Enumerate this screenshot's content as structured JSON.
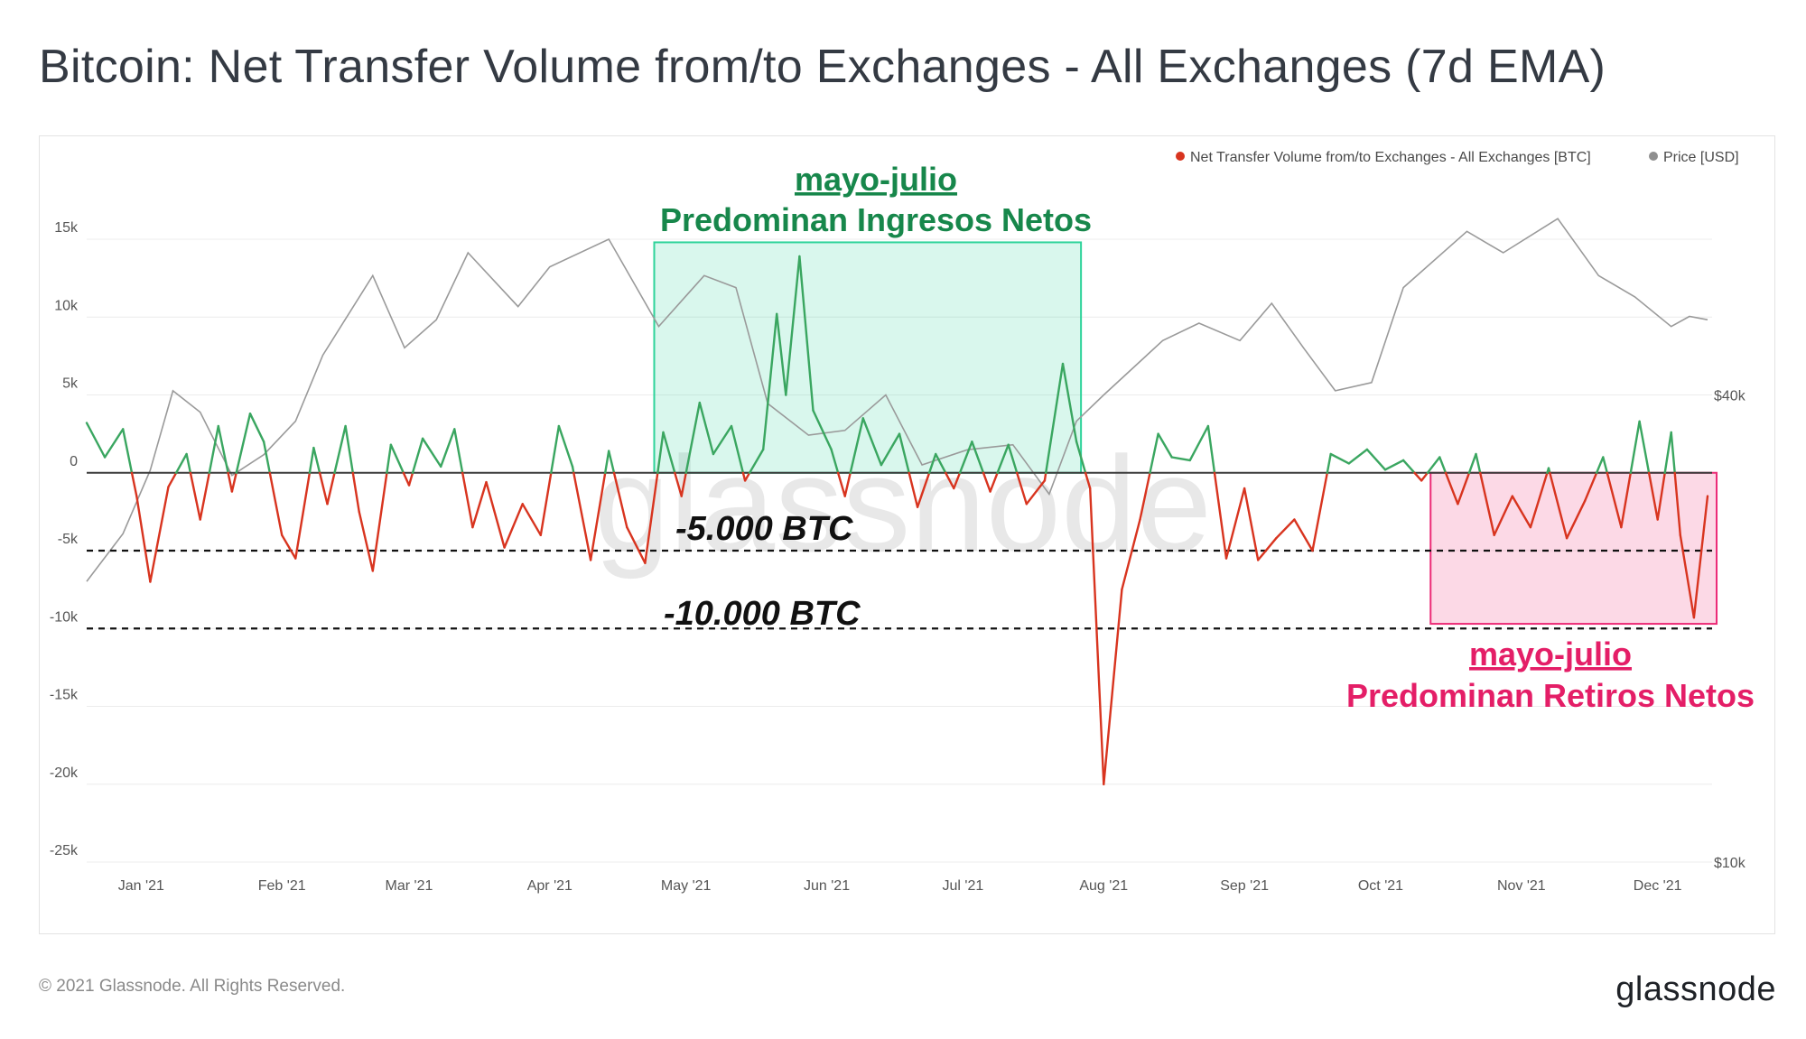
{
  "page": {
    "title": "Bitcoin: Net Transfer Volume from/to Exchanges - All Exchanges (7d EMA)",
    "copyright": "© 2021 Glassnode. All Rights Reserved.",
    "logo": "glassnode",
    "watermark": "glassnode"
  },
  "colors": {
    "positive": "#3aa660",
    "negative": "#d8341f",
    "price": "#9a9a9a",
    "inflow_box": "#2ed39a",
    "outflow_box": "#ec2a76",
    "annotation_green": "#17874b",
    "annotation_pink": "#e41e67"
  },
  "annotations": {
    "inflow_period": "mayo-julio",
    "inflow_text": "Predominan Ingresos Netos",
    "outflow_period": "mayo-julio",
    "outflow_text": "Predominan Retiros Netos",
    "level_5k": "-5.000 BTC",
    "level_10k": "-10.000 BTC"
  },
  "chart_data": {
    "type": "line",
    "title": "Bitcoin: Net Transfer Volume from/to Exchanges - All Exchanges (7d EMA)",
    "x_labels": [
      "Jan '21",
      "Feb '21",
      "Mar '21",
      "Apr '21",
      "May '21",
      "Jun '21",
      "Jul '21",
      "Aug '21",
      "Sep '21",
      "Oct '21",
      "Nov '21",
      "Dec '21"
    ],
    "y_left": {
      "label": "BTC",
      "ticks": [
        15000,
        10000,
        5000,
        0,
        -5000,
        -10000,
        -15000,
        -20000,
        -25000
      ],
      "tick_labels": [
        "15k",
        "10k",
        "5k",
        "0",
        "-5k",
        "-10k",
        "-15k",
        "-20k",
        "-25k"
      ],
      "range": [
        -25000,
        15000
      ]
    },
    "y_right": {
      "label": "USD",
      "scale": "log",
      "tick_labels": [
        "$40k",
        "$10k"
      ],
      "ticks": [
        40000,
        10000
      ]
    },
    "legend": [
      "Net Transfer Volume from/to Exchanges - All Exchanges [BTC]",
      "Price [USD]"
    ],
    "reference_lines": [
      -5000,
      -10000
    ],
    "series": [
      {
        "name": "Net Transfer Volume from/to Exchanges - All Exchanges [BTC]",
        "axis": "left",
        "points": [
          [
            "2020-12-20",
            3200
          ],
          [
            "2020-12-24",
            1000
          ],
          [
            "2020-12-28",
            2800
          ],
          [
            "2020-12-31",
            -1500
          ],
          [
            "2021-01-03",
            -7000
          ],
          [
            "2021-01-07",
            -900
          ],
          [
            "2021-01-11",
            1200
          ],
          [
            "2021-01-14",
            -3000
          ],
          [
            "2021-01-18",
            3000
          ],
          [
            "2021-01-21",
            -1200
          ],
          [
            "2021-01-25",
            3800
          ],
          [
            "2021-01-28",
            2000
          ],
          [
            "2021-02-01",
            -4000
          ],
          [
            "2021-02-04",
            -5500
          ],
          [
            "2021-02-08",
            1600
          ],
          [
            "2021-02-11",
            -2000
          ],
          [
            "2021-02-15",
            3000
          ],
          [
            "2021-02-18",
            -2500
          ],
          [
            "2021-02-21",
            -6300
          ],
          [
            "2021-02-25",
            1800
          ],
          [
            "2021-03-01",
            -800
          ],
          [
            "2021-03-04",
            2200
          ],
          [
            "2021-03-08",
            400
          ],
          [
            "2021-03-11",
            2800
          ],
          [
            "2021-03-15",
            -3500
          ],
          [
            "2021-03-18",
            -600
          ],
          [
            "2021-03-22",
            -4800
          ],
          [
            "2021-03-26",
            -2000
          ],
          [
            "2021-03-30",
            -4000
          ],
          [
            "2021-04-03",
            3000
          ],
          [
            "2021-04-06",
            400
          ],
          [
            "2021-04-10",
            -5600
          ],
          [
            "2021-04-14",
            1400
          ],
          [
            "2021-04-18",
            -3500
          ],
          [
            "2021-04-22",
            -5800
          ],
          [
            "2021-04-26",
            2600
          ],
          [
            "2021-04-30",
            -1500
          ],
          [
            "2021-05-04",
            4500
          ],
          [
            "2021-05-07",
            1200
          ],
          [
            "2021-05-11",
            3000
          ],
          [
            "2021-05-14",
            -500
          ],
          [
            "2021-05-18",
            1500
          ],
          [
            "2021-05-21",
            10200
          ],
          [
            "2021-05-23",
            5000
          ],
          [
            "2021-05-26",
            13900
          ],
          [
            "2021-05-29",
            4000
          ],
          [
            "2021-06-02",
            1500
          ],
          [
            "2021-06-05",
            -1500
          ],
          [
            "2021-06-09",
            3500
          ],
          [
            "2021-06-13",
            500
          ],
          [
            "2021-06-17",
            2500
          ],
          [
            "2021-06-21",
            -2200
          ],
          [
            "2021-06-25",
            1200
          ],
          [
            "2021-06-29",
            -1000
          ],
          [
            "2021-07-03",
            2000
          ],
          [
            "2021-07-07",
            -1200
          ],
          [
            "2021-07-11",
            1800
          ],
          [
            "2021-07-15",
            -2000
          ],
          [
            "2021-07-19",
            -500
          ],
          [
            "2021-07-23",
            7000
          ],
          [
            "2021-07-26",
            2000
          ],
          [
            "2021-07-29",
            -1000
          ],
          [
            "2021-08-01",
            -20000
          ],
          [
            "2021-08-05",
            -7500
          ],
          [
            "2021-08-09",
            -3000
          ],
          [
            "2021-08-13",
            2500
          ],
          [
            "2021-08-16",
            1000
          ],
          [
            "2021-08-20",
            800
          ],
          [
            "2021-08-24",
            3000
          ],
          [
            "2021-08-28",
            -5500
          ],
          [
            "2021-09-01",
            -1000
          ],
          [
            "2021-09-04",
            -5600
          ],
          [
            "2021-09-08",
            -4200
          ],
          [
            "2021-09-12",
            -3000
          ],
          [
            "2021-09-16",
            -5000
          ],
          [
            "2021-09-20",
            1200
          ],
          [
            "2021-09-24",
            600
          ],
          [
            "2021-09-28",
            1500
          ],
          [
            "2021-10-02",
            200
          ],
          [
            "2021-10-06",
            800
          ],
          [
            "2021-10-10",
            -500
          ],
          [
            "2021-10-14",
            1000
          ],
          [
            "2021-10-18",
            -2000
          ],
          [
            "2021-10-22",
            1200
          ],
          [
            "2021-10-26",
            -4000
          ],
          [
            "2021-10-30",
            -1500
          ],
          [
            "2021-11-03",
            -3500
          ],
          [
            "2021-11-07",
            300
          ],
          [
            "2021-11-11",
            -4200
          ],
          [
            "2021-11-15",
            -1800
          ],
          [
            "2021-11-19",
            1000
          ],
          [
            "2021-11-23",
            -3500
          ],
          [
            "2021-11-27",
            3300
          ],
          [
            "2021-12-01",
            -3000
          ],
          [
            "2021-12-04",
            2600
          ],
          [
            "2021-12-06",
            -4000
          ],
          [
            "2021-12-09",
            -9300
          ],
          [
            "2021-12-12",
            -1500
          ]
        ]
      },
      {
        "name": "Price [USD]",
        "axis": "right",
        "points": [
          [
            "2020-12-20",
            23000
          ],
          [
            "2020-12-28",
            26500
          ],
          [
            "2021-01-03",
            32000
          ],
          [
            "2021-01-08",
            40500
          ],
          [
            "2021-01-14",
            38000
          ],
          [
            "2021-01-21",
            31500
          ],
          [
            "2021-01-28",
            33500
          ],
          [
            "2021-02-04",
            37000
          ],
          [
            "2021-02-10",
            45000
          ],
          [
            "2021-02-21",
            57000
          ],
          [
            "2021-02-28",
            46000
          ],
          [
            "2021-03-07",
            50000
          ],
          [
            "2021-03-14",
            61000
          ],
          [
            "2021-03-25",
            52000
          ],
          [
            "2021-04-01",
            58500
          ],
          [
            "2021-04-14",
            63500
          ],
          [
            "2021-04-25",
            49000
          ],
          [
            "2021-05-05",
            57000
          ],
          [
            "2021-05-12",
            55000
          ],
          [
            "2021-05-19",
            39000
          ],
          [
            "2021-05-28",
            35500
          ],
          [
            "2021-06-05",
            36000
          ],
          [
            "2021-06-14",
            40000
          ],
          [
            "2021-06-22",
            32500
          ],
          [
            "2021-07-02",
            34000
          ],
          [
            "2021-07-12",
            34500
          ],
          [
            "2021-07-20",
            29800
          ],
          [
            "2021-07-26",
            37000
          ],
          [
            "2021-08-01",
            40000
          ],
          [
            "2021-08-14",
            47000
          ],
          [
            "2021-08-22",
            49500
          ],
          [
            "2021-08-31",
            47000
          ],
          [
            "2021-09-07",
            52500
          ],
          [
            "2021-09-14",
            46000
          ],
          [
            "2021-09-21",
            40500
          ],
          [
            "2021-09-29",
            41500
          ],
          [
            "2021-10-06",
            55000
          ],
          [
            "2021-10-20",
            65000
          ],
          [
            "2021-10-28",
            61000
          ],
          [
            "2021-11-09",
            67500
          ],
          [
            "2021-11-18",
            57000
          ],
          [
            "2021-11-26",
            53500
          ],
          [
            "2021-12-04",
            49000
          ],
          [
            "2021-12-08",
            50500
          ],
          [
            "2021-12-12",
            50000
          ]
        ]
      }
    ]
  }
}
